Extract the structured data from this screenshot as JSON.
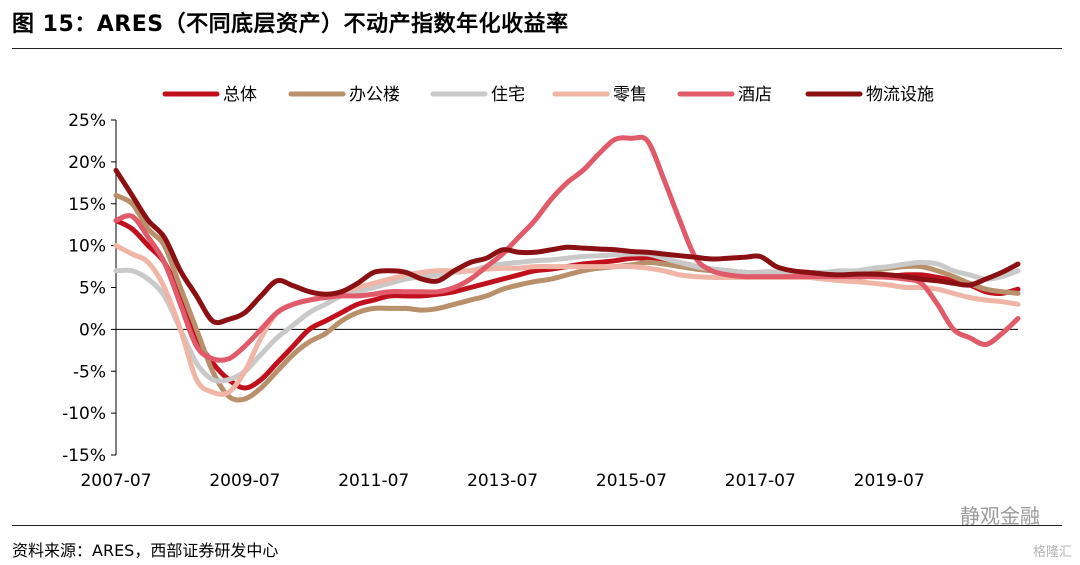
{
  "figure": {
    "title": "图 15：ARES（不同底层资产）不动产指数年化收益率",
    "source": "资料来源：ARES，西部证券研发中心",
    "watermark": "静观金融",
    "corner_mark": "格隆汇"
  },
  "chart_data": {
    "type": "line",
    "title": "",
    "xlabel": "",
    "ylabel": "",
    "ylim": [
      -15,
      25
    ],
    "y_ticks": [
      -15,
      -10,
      -5,
      0,
      5,
      10,
      15,
      20,
      25
    ],
    "y_tick_labels": [
      "-15%",
      "-10%",
      "-5%",
      "0%",
      "5%",
      "10%",
      "15%",
      "20%",
      "25%"
    ],
    "x_tick_labels": [
      "2007-07",
      "2009-07",
      "2011-07",
      "2013-07",
      "2015-07",
      "2017-07",
      "2019-07"
    ],
    "x_range_years": [
      2007.5,
      2021.5
    ],
    "legend_position": "top",
    "grid": false,
    "series": [
      {
        "name": "总体",
        "color": "#c0101e",
        "x": [
          2007.5,
          2007.75,
          2008,
          2008.25,
          2008.5,
          2008.75,
          2009,
          2009.25,
          2009.5,
          2009.75,
          2010,
          2010.25,
          2010.5,
          2010.75,
          2011,
          2011.25,
          2011.5,
          2011.75,
          2012,
          2012.25,
          2012.5,
          2012.75,
          2013,
          2013.25,
          2013.5,
          2013.75,
          2014,
          2014.25,
          2014.5,
          2014.75,
          2015,
          2015.25,
          2015.5,
          2015.75,
          2016,
          2016.25,
          2016.5,
          2016.75,
          2017,
          2017.25,
          2017.5,
          2017.75,
          2018,
          2018.25,
          2018.5,
          2018.75,
          2019,
          2019.25,
          2019.5,
          2019.75,
          2020,
          2020.25,
          2020.5,
          2020.75,
          2021,
          2021.25,
          2021.5
        ],
        "y": [
          13,
          12,
          10,
          8,
          4,
          -1,
          -4,
          -6,
          -7,
          -6,
          -4,
          -2,
          0,
          1,
          2,
          3,
          3.5,
          4,
          4,
          4,
          4.2,
          4.5,
          5,
          5.5,
          6,
          6.5,
          7,
          7.2,
          7.5,
          7.8,
          8,
          8.2,
          8.5,
          8.5,
          8.3,
          8,
          7.5,
          7.2,
          7,
          6.8,
          6.8,
          6.8,
          6.5,
          6.5,
          6.5,
          6.5,
          6.3,
          6.3,
          6.3,
          6.5,
          6.5,
          6.2,
          5.8,
          5.3,
          4.5,
          4.3,
          4.8
        ]
      },
      {
        "name": "办公楼",
        "color": "#b8906b",
        "x": [
          2007.5,
          2007.75,
          2008,
          2008.25,
          2008.5,
          2008.75,
          2009,
          2009.25,
          2009.5,
          2009.75,
          2010,
          2010.25,
          2010.5,
          2010.75,
          2011,
          2011.25,
          2011.5,
          2011.75,
          2012,
          2012.25,
          2012.5,
          2012.75,
          2013,
          2013.25,
          2013.5,
          2013.75,
          2014,
          2014.25,
          2014.5,
          2014.75,
          2015,
          2015.25,
          2015.5,
          2015.75,
          2016,
          2016.25,
          2016.5,
          2016.75,
          2017,
          2017.25,
          2017.5,
          2017.75,
          2018,
          2018.25,
          2018.5,
          2018.75,
          2019,
          2019.25,
          2019.5,
          2019.75,
          2020,
          2020.25,
          2020.5,
          2020.75,
          2021,
          2021.25,
          2021.5
        ],
        "y": [
          16,
          15,
          12,
          10,
          5,
          0,
          -5,
          -8,
          -8.3,
          -7,
          -5,
          -3,
          -1.5,
          -0.5,
          1,
          2,
          2.5,
          2.5,
          2.5,
          2.3,
          2.5,
          3,
          3.5,
          4,
          4.8,
          5.3,
          5.7,
          6,
          6.5,
          7,
          7.3,
          7.5,
          7.7,
          8,
          7.8,
          7.5,
          7.2,
          7,
          6.8,
          6.5,
          6.3,
          6.3,
          6.5,
          6.5,
          6.7,
          6.8,
          6.8,
          7,
          7.3,
          7.5,
          7.5,
          7,
          6.3,
          5.5,
          4.8,
          4.5,
          4.3
        ]
      },
      {
        "name": "住宅",
        "color": "#c9c9c9",
        "x": [
          2007.5,
          2007.75,
          2008,
          2008.25,
          2008.5,
          2008.75,
          2009,
          2009.25,
          2009.5,
          2009.75,
          2010,
          2010.25,
          2010.5,
          2010.75,
          2011,
          2011.25,
          2011.5,
          2011.75,
          2012,
          2012.25,
          2012.5,
          2012.75,
          2013,
          2013.25,
          2013.5,
          2013.75,
          2014,
          2014.25,
          2014.5,
          2014.75,
          2015,
          2015.25,
          2015.5,
          2015.75,
          2016,
          2016.25,
          2016.5,
          2016.75,
          2017,
          2017.25,
          2017.5,
          2017.75,
          2018,
          2018.25,
          2018.5,
          2018.75,
          2019,
          2019.25,
          2019.5,
          2019.75,
          2020,
          2020.25,
          2020.5,
          2020.75,
          2021,
          2021.25,
          2021.5
        ],
        "y": [
          7,
          7,
          6,
          4,
          0,
          -4,
          -6,
          -6,
          -5,
          -3,
          -1,
          0.5,
          2,
          3,
          4,
          4.5,
          5,
          5.5,
          6,
          6.3,
          6.5,
          6.8,
          7,
          7.5,
          7.8,
          8,
          8.2,
          8.3,
          8.5,
          8.7,
          8.8,
          8.9,
          9,
          9,
          8.5,
          8,
          7.5,
          7.2,
          7,
          6.8,
          6.8,
          6.8,
          6.8,
          6.8,
          6.8,
          7,
          7,
          7.3,
          7.5,
          7.8,
          8,
          7.8,
          7,
          6.5,
          6,
          6.3,
          7
        ]
      },
      {
        "name": "零售",
        "color": "#f0b5a6",
        "x": [
          2007.5,
          2007.75,
          2008,
          2008.25,
          2008.5,
          2008.75,
          2009,
          2009.25,
          2009.5,
          2009.75,
          2010,
          2010.25,
          2010.5,
          2010.75,
          2011,
          2011.25,
          2011.5,
          2011.75,
          2012,
          2012.25,
          2012.5,
          2012.75,
          2013,
          2013.25,
          2013.5,
          2013.75,
          2014,
          2014.25,
          2014.5,
          2014.75,
          2015,
          2015.25,
          2015.5,
          2015.75,
          2016,
          2016.25,
          2016.5,
          2016.75,
          2017,
          2017.25,
          2017.5,
          2017.75,
          2018,
          2018.25,
          2018.5,
          2018.75,
          2019,
          2019.25,
          2019.5,
          2019.75,
          2020,
          2020.25,
          2020.5,
          2020.75,
          2021,
          2021.25,
          2021.5
        ],
        "y": [
          10,
          9,
          8,
          5,
          0,
          -6,
          -7.5,
          -7.5,
          -5,
          -1,
          2,
          3,
          3.5,
          4,
          4.5,
          5,
          5.5,
          6,
          6.5,
          6.8,
          7,
          7,
          7,
          7.2,
          7.3,
          7.3,
          7.5,
          7.5,
          7.5,
          7.5,
          7.5,
          7.5,
          7.5,
          7.3,
          7,
          6.5,
          6.3,
          6.2,
          6.2,
          6.2,
          6.2,
          6.2,
          6.2,
          6.2,
          6,
          5.8,
          5.7,
          5.5,
          5.3,
          5,
          5,
          4.8,
          4.3,
          3.8,
          3.5,
          3.3,
          3
        ]
      },
      {
        "name": "酒店",
        "color": "#e05a6a",
        "x": [
          2007.5,
          2007.75,
          2008,
          2008.25,
          2008.5,
          2008.75,
          2009,
          2009.25,
          2009.5,
          2009.75,
          2010,
          2010.25,
          2010.5,
          2010.75,
          2011,
          2011.25,
          2011.5,
          2011.75,
          2012,
          2012.25,
          2012.5,
          2012.75,
          2013,
          2013.25,
          2013.5,
          2013.75,
          2014,
          2014.25,
          2014.5,
          2014.75,
          2015,
          2015.25,
          2015.5,
          2015.75,
          2016,
          2016.25,
          2016.5,
          2016.75,
          2017,
          2017.25,
          2017.5,
          2017.75,
          2018,
          2018.25,
          2018.5,
          2018.75,
          2019,
          2019.25,
          2019.5,
          2019.75,
          2020,
          2020.25,
          2020.5,
          2020.75,
          2021,
          2021.25,
          2021.5
        ],
        "y": [
          13,
          13.5,
          11,
          8,
          3,
          -2,
          -3.5,
          -3.5,
          -2,
          0,
          2,
          3,
          3.5,
          3.8,
          4,
          4,
          4.2,
          4.5,
          4.5,
          4.5,
          4.5,
          5,
          6,
          7.5,
          9,
          11,
          13,
          15.5,
          17.5,
          19,
          21,
          22.7,
          22.8,
          22.5,
          18,
          13,
          8.5,
          7,
          6.5,
          6.3,
          6.3,
          6.3,
          6.3,
          6.3,
          6.3,
          6.3,
          6.3,
          6.3,
          6.2,
          6,
          5.5,
          3,
          0,
          -1,
          -1.8,
          -0.5,
          1.3
        ]
      },
      {
        "name": "物流设施",
        "color": "#8b1014",
        "x": [
          2007.5,
          2007.75,
          2008,
          2008.25,
          2008.5,
          2008.75,
          2009,
          2009.25,
          2009.5,
          2009.75,
          2010,
          2010.25,
          2010.5,
          2010.75,
          2011,
          2011.25,
          2011.5,
          2011.75,
          2012,
          2012.25,
          2012.5,
          2012.75,
          2013,
          2013.25,
          2013.5,
          2013.75,
          2014,
          2014.25,
          2014.5,
          2014.75,
          2015,
          2015.25,
          2015.5,
          2015.75,
          2016,
          2016.25,
          2016.5,
          2016.75,
          2017,
          2017.25,
          2017.5,
          2017.75,
          2018,
          2018.25,
          2018.5,
          2018.75,
          2019,
          2019.25,
          2019.5,
          2019.75,
          2020,
          2020.25,
          2020.5,
          2020.75,
          2021,
          2021.25,
          2021.5
        ],
        "y": [
          19,
          16,
          13,
          11,
          7,
          4,
          1,
          1.2,
          2,
          4,
          5.8,
          5.2,
          4.5,
          4.2,
          4.5,
          5.5,
          6.8,
          7,
          6.8,
          6,
          5.8,
          7,
          8,
          8.5,
          9.5,
          9.2,
          9.2,
          9.5,
          9.8,
          9.7,
          9.6,
          9.5,
          9.3,
          9.2,
          9,
          8.8,
          8.6,
          8.4,
          8.5,
          8.6,
          8.7,
          7.5,
          7,
          6.8,
          6.6,
          6.5,
          6.6,
          6.6,
          6.5,
          6.3,
          6,
          5.8,
          5.5,
          5.3,
          6,
          6.8,
          7.8
        ]
      }
    ]
  }
}
